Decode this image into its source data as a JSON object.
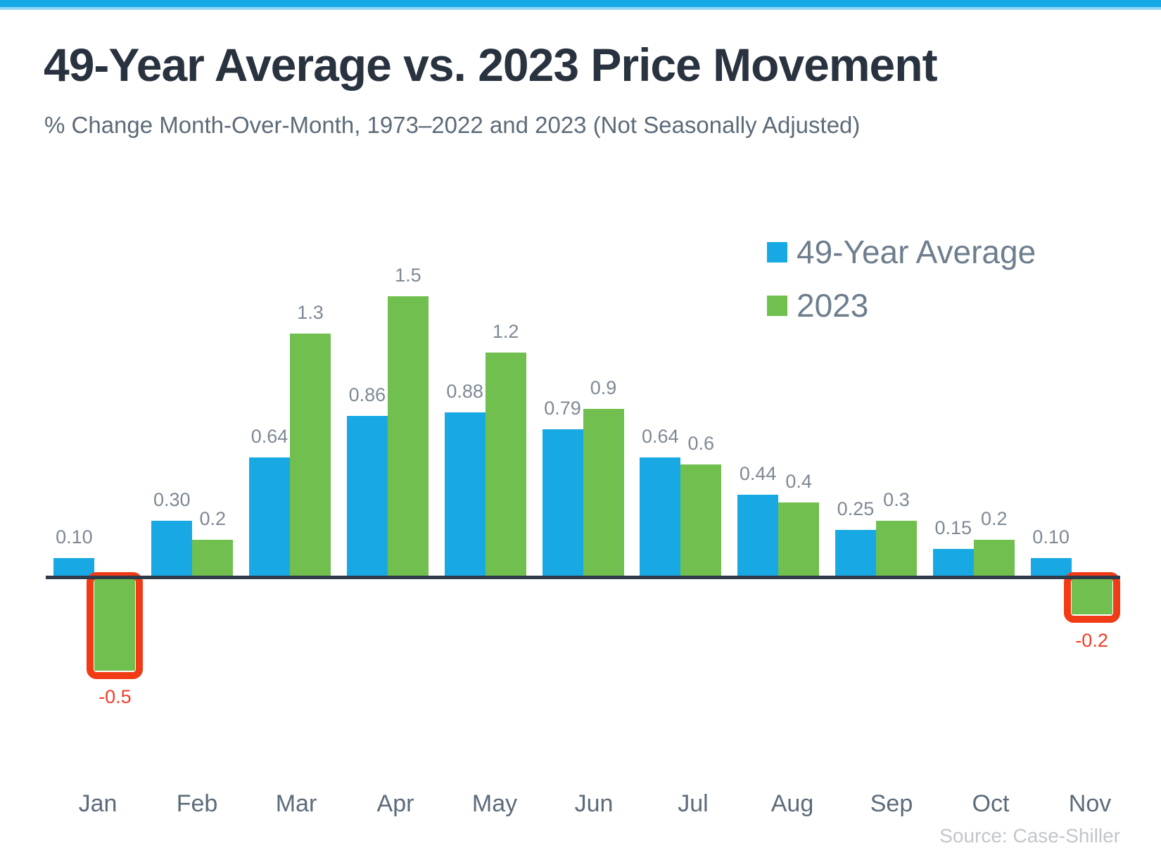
{
  "window": {
    "top_bar_color": "#14a9e7",
    "top_bar_fade_color": "#8ed7f5",
    "background": "#ffffff"
  },
  "header": {
    "title": "49-Year Average vs. 2023 Price Movement",
    "subtitle": "% Change Month-Over-Month, 1973–2022 and 2023 (Not Seasonally Adjusted)"
  },
  "footer": {
    "source": "Source: Case-Shiller"
  },
  "chart_data": {
    "type": "bar",
    "title": "49-Year Average vs. 2023 Price Movement",
    "subtitle": "% Change Month-Over-Month, 1973–2022 and 2023 (Not Seasonally Adjusted)",
    "categories": [
      "Jan",
      "Feb",
      "Mar",
      "Apr",
      "May",
      "Jun",
      "Jul",
      "Aug",
      "Sep",
      "Oct",
      "Nov"
    ],
    "series": [
      {
        "name": "49-Year Average",
        "color": "#18a9e4",
        "values": [
          0.1,
          0.3,
          0.64,
          0.86,
          0.88,
          0.79,
          0.64,
          0.44,
          0.25,
          0.15,
          0.1
        ],
        "labels": [
          "0.10",
          "0.30",
          "0.64",
          "0.86",
          "0.88",
          "0.79",
          "0.64",
          "0.44",
          "0.25",
          "0.15",
          "0.10"
        ]
      },
      {
        "name": "2023",
        "color": "#71bf4e",
        "values": [
          -0.5,
          0.2,
          1.3,
          1.5,
          1.2,
          0.9,
          0.6,
          0.4,
          0.3,
          0.2,
          -0.2
        ],
        "labels": [
          "-0.5",
          "0.2",
          "1.3",
          "1.5",
          "1.2",
          "0.9",
          "0.6",
          "0.4",
          "0.3",
          "0.2",
          "-0.2"
        ]
      }
    ],
    "highlight": {
      "indices": [
        0,
        10
      ],
      "box_color": "#f03b16",
      "label_color": "#f23c26"
    },
    "value_label_color": "#7e8994",
    "axis_label_color": "#5c6b7a",
    "axis_line_color": "#2e3b48",
    "ylim": [
      -0.7,
      1.7
    ],
    "grid": false,
    "value_labels": true,
    "legend_position": "top-right",
    "baseline": 0
  }
}
